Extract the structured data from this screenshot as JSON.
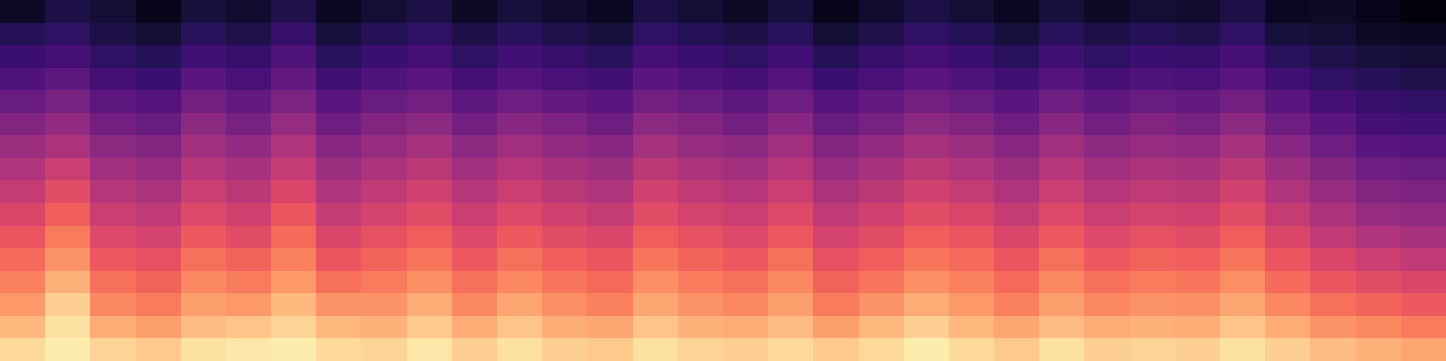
{
  "chart_data": {
    "type": "heatmap",
    "color": "magma",
    "tick_labels": false,
    "color_range": [
      -80,
      0
    ],
    "cells": [
      [
        -74,
        -70,
        -72,
        -76,
        -71,
        -73,
        -69,
        -75,
        -72,
        -70,
        -74,
        -71,
        -73,
        -75,
        -70,
        -72,
        -74,
        -71,
        -76,
        -73,
        -70,
        -72,
        -75,
        -71,
        -74,
        -72,
        -73,
        -70,
        -75,
        -74,
        -76,
        -78
      ],
      [
        -68,
        -66,
        -70,
        -72,
        -67,
        -69,
        -65,
        -71,
        -68,
        -66,
        -70,
        -67,
        -69,
        -71,
        -66,
        -68,
        -70,
        -67,
        -72,
        -69,
        -66,
        -68,
        -71,
        -67,
        -70,
        -68,
        -69,
        -66,
        -71,
        -72,
        -74,
        -75
      ],
      [
        -64,
        -62,
        -66,
        -68,
        -63,
        -65,
        -60,
        -67,
        -64,
        -62,
        -66,
        -63,
        -65,
        -67,
        -62,
        -64,
        -66,
        -63,
        -68,
        -65,
        -62,
        -64,
        -67,
        -63,
        -66,
        -64,
        -65,
        -62,
        -67,
        -69,
        -71,
        -72
      ],
      [
        -60,
        -57,
        -62,
        -64,
        -58,
        -61,
        -56,
        -63,
        -60,
        -58,
        -62,
        -59,
        -61,
        -63,
        -58,
        -60,
        -62,
        -59,
        -64,
        -61,
        -58,
        -60,
        -63,
        -59,
        -62,
        -60,
        -61,
        -58,
        -63,
        -66,
        -68,
        -69
      ],
      [
        -55,
        -52,
        -57,
        -59,
        -53,
        -56,
        -51,
        -58,
        -55,
        -53,
        -57,
        -54,
        -56,
        -58,
        -53,
        -55,
        -57,
        -54,
        -59,
        -56,
        -53,
        -55,
        -58,
        -54,
        -57,
        -55,
        -56,
        -53,
        -58,
        -62,
        -65,
        -66
      ],
      [
        -50,
        -47,
        -53,
        -55,
        -48,
        -52,
        -46,
        -54,
        -50,
        -48,
        -53,
        -49,
        -51,
        -54,
        -48,
        -50,
        -53,
        -49,
        -55,
        -52,
        -48,
        -50,
        -54,
        -49,
        -53,
        -50,
        -52,
        -48,
        -54,
        -58,
        -62,
        -63
      ],
      [
        -45,
        -42,
        -48,
        -50,
        -44,
        -47,
        -41,
        -49,
        -46,
        -43,
        -48,
        -44,
        -47,
        -49,
        -43,
        -46,
        -48,
        -44,
        -50,
        -47,
        -43,
        -45,
        -49,
        -44,
        -48,
        -46,
        -47,
        -43,
        -49,
        -54,
        -58,
        -59
      ],
      [
        -41,
        -36,
        -44,
        -46,
        -40,
        -43,
        -37,
        -45,
        -42,
        -39,
        -44,
        -40,
        -43,
        -45,
        -39,
        -42,
        -44,
        -40,
        -46,
        -43,
        -39,
        -41,
        -45,
        -40,
        -44,
        -42,
        -43,
        -39,
        -45,
        -50,
        -54,
        -55
      ],
      [
        -37,
        -31,
        -40,
        -42,
        -36,
        -39,
        -33,
        -41,
        -38,
        -35,
        -40,
        -36,
        -39,
        -41,
        -35,
        -38,
        -40,
        -36,
        -42,
        -39,
        -35,
        -37,
        -41,
        -36,
        -40,
        -38,
        -39,
        -35,
        -41,
        -46,
        -50,
        -51
      ],
      [
        -33,
        -27,
        -36,
        -38,
        -32,
        -35,
        -29,
        -37,
        -34,
        -31,
        -36,
        -32,
        -35,
        -37,
        -31,
        -34,
        -36,
        -32,
        -38,
        -35,
        -31,
        -33,
        -37,
        -32,
        -36,
        -34,
        -35,
        -31,
        -37,
        -42,
        -46,
        -47
      ],
      [
        -29,
        -22,
        -32,
        -34,
        -28,
        -31,
        -25,
        -33,
        -30,
        -27,
        -32,
        -28,
        -31,
        -33,
        -27,
        -30,
        -32,
        -28,
        -34,
        -31,
        -27,
        -29,
        -33,
        -28,
        -32,
        -30,
        -31,
        -27,
        -33,
        -38,
        -41,
        -43
      ],
      [
        -25,
        -18,
        -28,
        -30,
        -24,
        -26,
        -21,
        -29,
        -26,
        -23,
        -28,
        -24,
        -27,
        -29,
        -23,
        -26,
        -28,
        -24,
        -30,
        -27,
        -23,
        -25,
        -29,
        -24,
        -28,
        -26,
        -27,
        -23,
        -29,
        -33,
        -36,
        -38
      ],
      [
        -21,
        -13,
        -24,
        -26,
        -20,
        -22,
        -17,
        -24,
        -22,
        -19,
        -24,
        -20,
        -23,
        -25,
        -19,
        -22,
        -24,
        -20,
        -26,
        -23,
        -19,
        -21,
        -25,
        -20,
        -24,
        -22,
        -23,
        -19,
        -25,
        -29,
        -31,
        -33
      ],
      [
        -17,
        -8,
        -20,
        -22,
        -16,
        -17,
        -12,
        -18,
        -18,
        -14,
        -20,
        -15,
        -19,
        -21,
        -15,
        -18,
        -20,
        -16,
        -22,
        -18,
        -14,
        -17,
        -21,
        -16,
        -20,
        -18,
        -19,
        -15,
        -20,
        -24,
        -26,
        -28
      ],
      [
        -12,
        -5,
        -14,
        -16,
        -11,
        -10,
        -7,
        -12,
        -13,
        -9,
        -14,
        -10,
        -14,
        -15,
        -10,
        -13,
        -14,
        -11,
        -16,
        -12,
        -8,
        -12,
        -15,
        -11,
        -14,
        -13,
        -14,
        -10,
        -14,
        -18,
        -20,
        -22
      ],
      [
        -6,
        -3,
        -7,
        -9,
        -5,
        -4,
        -3,
        -6,
        -7,
        -4,
        -8,
        -5,
        -8,
        -9,
        -5,
        -7,
        -8,
        -6,
        -9,
        -6,
        -3,
        -6,
        -9,
        -5,
        -8,
        -7,
        -8,
        -5,
        -8,
        -11,
        -13,
        -15
      ]
    ]
  }
}
